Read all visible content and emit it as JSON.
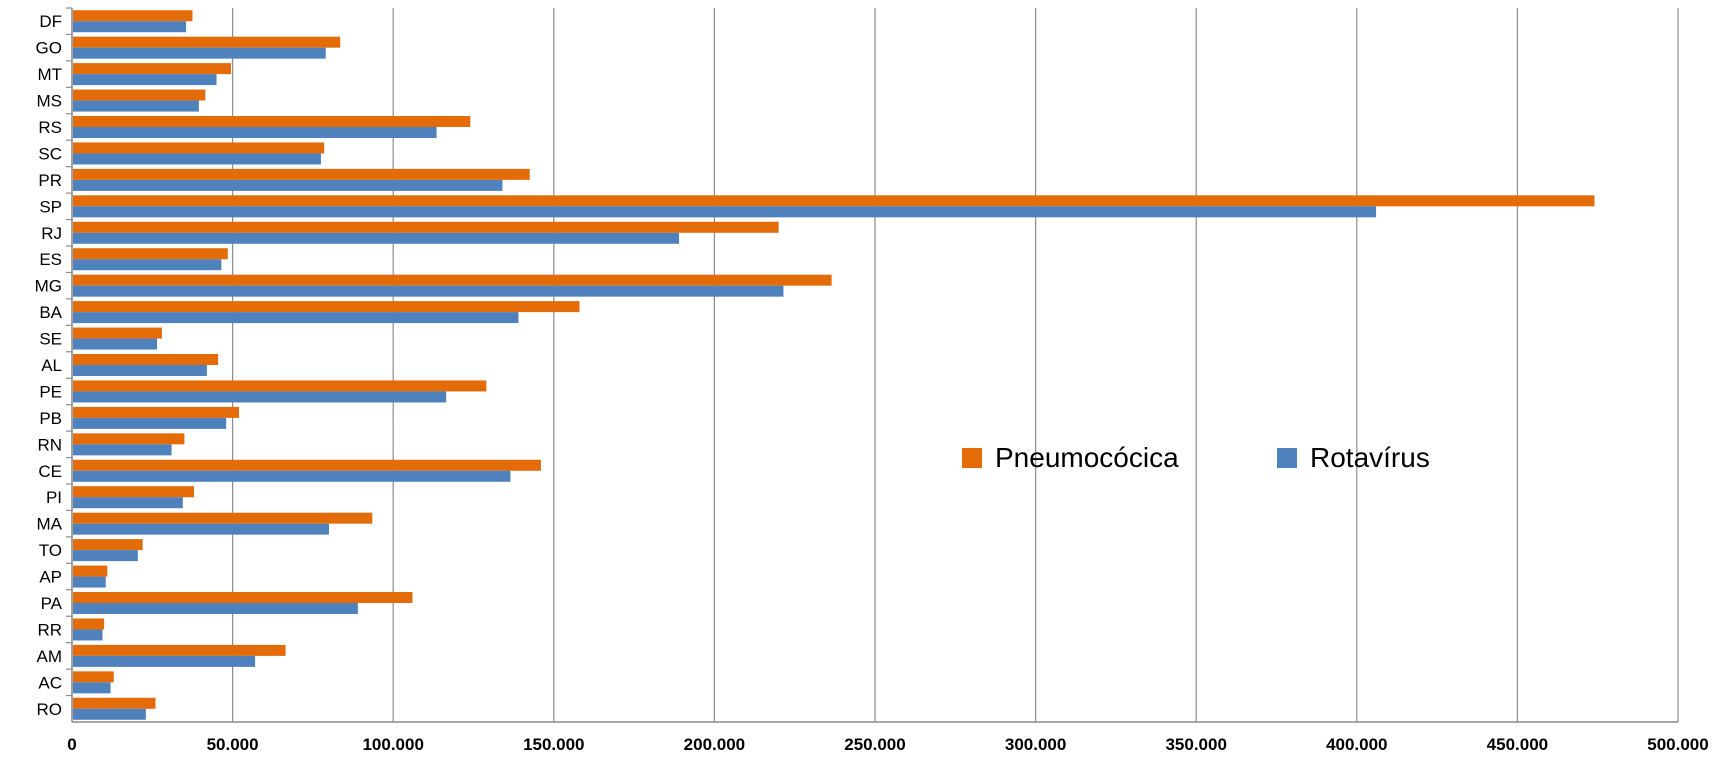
{
  "chart_data": {
    "type": "bar",
    "orientation": "horizontal",
    "title": "",
    "xlabel": "",
    "ylabel": "",
    "categories": [
      "RO",
      "AC",
      "AM",
      "RR",
      "PA",
      "AP",
      "TO",
      "MA",
      "PI",
      "CE",
      "RN",
      "PB",
      "PE",
      "AL",
      "SE",
      "BA",
      "MG",
      "ES",
      "RJ",
      "SP",
      "PR",
      "SC",
      "RS",
      "MS",
      "MT",
      "GO",
      "DF"
    ],
    "series": [
      {
        "name": "Pneumocócica",
        "color": "#E36C09",
        "values": [
          26000,
          13000,
          66500,
          10000,
          106000,
          11000,
          22000,
          93500,
          38000,
          146000,
          35000,
          52000,
          129000,
          45500,
          28000,
          158000,
          236500,
          48500,
          220000,
          474000,
          142500,
          78500,
          124000,
          41500,
          49500,
          83500,
          37500
        ]
      },
      {
        "name": "Rotavírus",
        "color": "#4F81BD",
        "values": [
          23000,
          12000,
          57000,
          9500,
          89000,
          10500,
          20500,
          80000,
          34500,
          136500,
          31000,
          48000,
          116500,
          42000,
          26500,
          139000,
          221500,
          46500,
          189000,
          406000,
          134000,
          77500,
          113500,
          39500,
          45000,
          79000,
          35500
        ]
      }
    ],
    "xlim": [
      0,
      500000
    ],
    "xticks": [
      0,
      50000,
      100000,
      150000,
      200000,
      250000,
      300000,
      350000,
      400000,
      450000,
      500000
    ],
    "xtick_labels": [
      "0",
      "50.000",
      "100.000",
      "150.000",
      "200.000",
      "250.000",
      "300.000",
      "350.000",
      "400.000",
      "450.000",
      "500.000"
    ],
    "grid": true,
    "legend_position": "center-right"
  }
}
